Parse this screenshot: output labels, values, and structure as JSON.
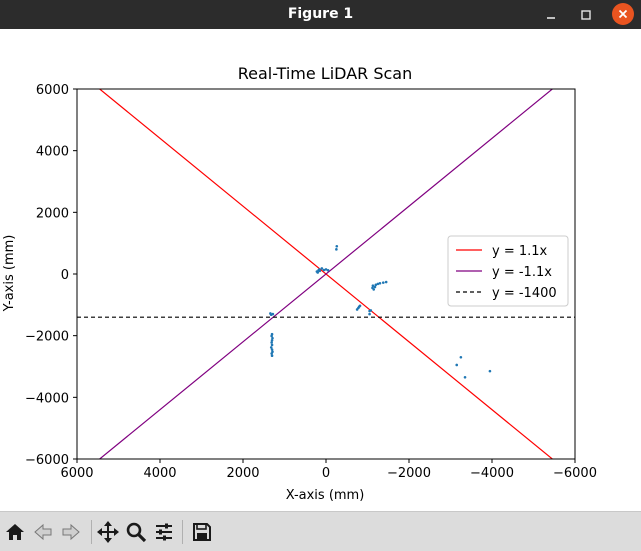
{
  "window": {
    "title": "Figure 1"
  },
  "toolbar": {
    "icons": [
      "home-icon",
      "back-icon",
      "forward-icon",
      "pan-icon",
      "zoom-icon",
      "configure-subplots-icon",
      "save-icon"
    ]
  },
  "chart_data": {
    "type": "scatter",
    "title": "Real-Time LiDAR Scan",
    "xlabel": "X-axis (mm)",
    "ylabel": "Y-axis (mm)",
    "xlim": [
      6000,
      -6000
    ],
    "ylim": [
      6000,
      -6000
    ],
    "xticks": [
      "6000",
      "4000",
      "2000",
      "0",
      "−2000",
      "−4000",
      "−6000"
    ],
    "yticks": [
      "−6000",
      "−4000",
      "−2000",
      "0",
      "2000",
      "4000",
      "6000"
    ],
    "xtick_values": [
      6000,
      4000,
      2000,
      0,
      -2000,
      -4000,
      -6000
    ],
    "ytick_values": [
      -6000,
      -4000,
      -2000,
      0,
      2000,
      4000,
      6000
    ],
    "legend_position": "right",
    "lines": [
      {
        "name": "y = 1.1x",
        "slope": 1.1,
        "color": "#ff0000",
        "style": "solid"
      },
      {
        "name": "y = -1.1x",
        "slope": -1.1,
        "color": "#800080",
        "style": "solid"
      },
      {
        "name": "y = -1400",
        "y": -1400,
        "color": "#000000",
        "style": "dashed"
      }
    ],
    "scatter_color": "#1f77b4",
    "points": [
      [
        1300,
        -2650
      ],
      [
        1310,
        -2580
      ],
      [
        1290,
        -2520
      ],
      [
        1300,
        -2450
      ],
      [
        1320,
        -2380
      ],
      [
        1300,
        -2300
      ],
      [
        1310,
        -2220
      ],
      [
        1300,
        -2150
      ],
      [
        1290,
        -2080
      ],
      [
        1310,
        -2010
      ],
      [
        1300,
        -1950
      ],
      [
        1320,
        -1320
      ],
      [
        1280,
        -1300
      ],
      [
        1340,
        -1280
      ],
      [
        -750,
        -1150
      ],
      [
        -780,
        -1100
      ],
      [
        -800,
        -1060
      ],
      [
        -820,
        -1030
      ],
      [
        -1050,
        -1200
      ],
      [
        -1080,
        -1180
      ],
      [
        -1150,
        -500
      ],
      [
        -1120,
        -450
      ],
      [
        -1180,
        -420
      ],
      [
        -1130,
        -380
      ],
      [
        -1200,
        -350
      ],
      [
        -1250,
        -320
      ],
      [
        -1300,
        -300
      ],
      [
        -1380,
        -280
      ],
      [
        -1450,
        -260
      ],
      [
        -3150,
        -2950
      ],
      [
        -3350,
        -3350
      ],
      [
        -3250,
        -2700
      ],
      [
        -3950,
        -3150
      ],
      [
        -1050,
        -1300
      ],
      [
        200,
        50
      ],
      [
        180,
        120
      ],
      [
        220,
        80
      ],
      [
        160,
        150
      ],
      [
        150,
        100
      ],
      [
        100,
        180
      ],
      [
        50,
        130
      ],
      [
        0,
        150
      ],
      [
        -50,
        120
      ],
      [
        -250,
        800
      ],
      [
        -260,
        900
      ]
    ]
  }
}
